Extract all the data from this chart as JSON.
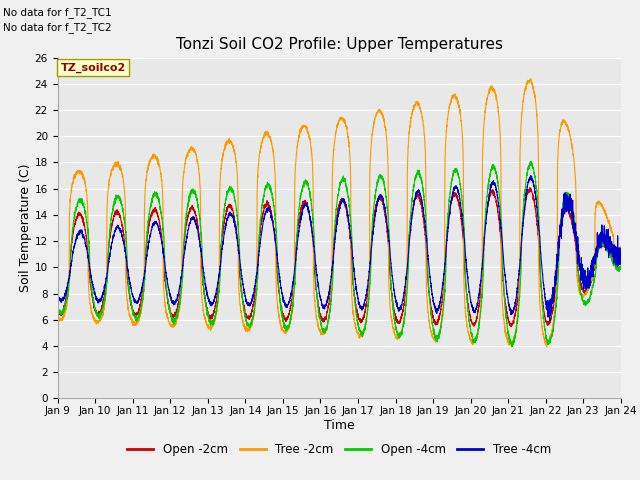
{
  "title": "Tonzi Soil CO2 Profile: Upper Temperatures",
  "xlabel": "Time",
  "ylabel": "Soil Temperature (C)",
  "ylim": [
    0,
    26
  ],
  "background_color": "#e8e8e8",
  "fig_background": "#f0f0f0",
  "no_data_text": [
    "No data for f_T2_TC1",
    "No data for f_T2_TC2"
  ],
  "dataset_label": "TZ_soilco2",
  "legend_entries": [
    "Open -2cm",
    "Tree -2cm",
    "Open -4cm",
    "Tree -4cm"
  ],
  "line_colors": [
    "#cc0000",
    "#ff9900",
    "#00cc00",
    "#0000cc"
  ],
  "x_tick_labels": [
    "Jan 9",
    "Jan 10",
    "Jan 11",
    "Jan 12",
    "Jan 13",
    "Jan 14",
    "Jan 15",
    "Jan 16",
    "Jan 17",
    "Jan 18",
    "Jan 19",
    "Jan 20",
    "Jan 21",
    "Jan 22",
    "Jan 23",
    "Jan 24"
  ],
  "title_fontsize": 11,
  "axis_fontsize": 9,
  "tick_fontsize": 7.5,
  "legend_fontsize": 8.5
}
